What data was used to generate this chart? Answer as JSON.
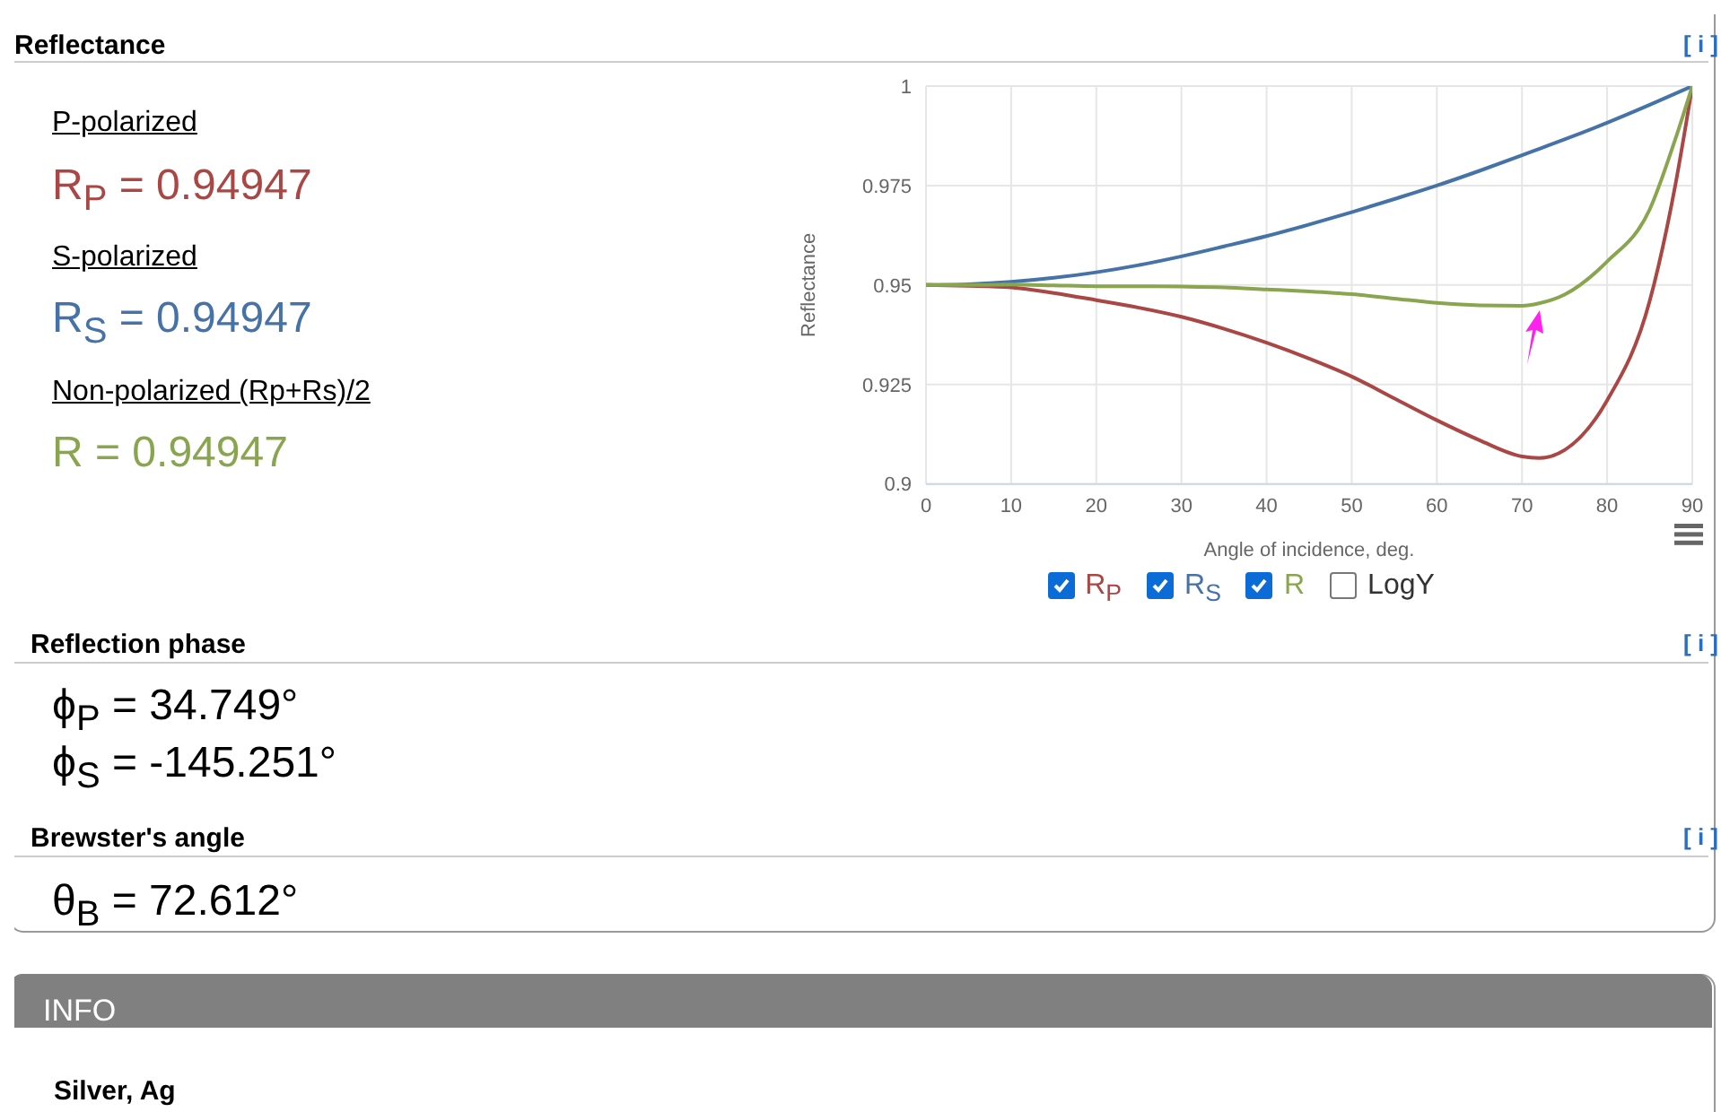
{
  "chart_data": {
    "type": "line",
    "title": "Reflectance",
    "xlabel": "Angle of incidence, deg.",
    "ylabel": "Reflectance",
    "x": [
      0,
      5,
      10,
      15,
      20,
      25,
      30,
      35,
      40,
      45,
      50,
      55,
      60,
      65,
      70,
      72,
      75,
      80,
      85,
      88,
      90
    ],
    "series": [
      {
        "name": "R$_{P}$",
        "color": "#aa4643",
        "values": [
          0.95,
          0.9498,
          0.9494,
          0.948,
          0.9462,
          0.9443,
          0.942,
          0.939,
          0.9355,
          0.9315,
          0.927,
          0.9215,
          0.916,
          0.911,
          0.9069,
          0.9065,
          0.9085,
          0.921,
          0.946,
          0.975,
          1
        ]
      },
      {
        "name": "R$_{S}$",
        "color": "#4572a7",
        "values": [
          0.95,
          0.9502,
          0.9508,
          0.9518,
          0.9532,
          0.955,
          0.9572,
          0.9597,
          0.9623,
          0.9652,
          0.9683,
          0.9716,
          0.975,
          0.9787,
          0.9826,
          0.9842,
          0.9866,
          0.9908,
          0.9953,
          0.9981,
          1
        ]
      },
      {
        "name": "R",
        "color": "#89a54e",
        "values": [
          0.95,
          0.95,
          0.9501,
          0.9499,
          0.9497,
          0.9497,
          0.9496,
          0.9494,
          0.9489,
          0.9484,
          0.9477,
          0.9466,
          0.9455,
          0.9449,
          0.9448,
          0.9454,
          0.9476,
          0.9559,
          0.969,
          0.9866,
          1
        ]
      }
    ],
    "xlim": [
      0,
      90
    ],
    "xticks": [
      0,
      10,
      20,
      30,
      40,
      50,
      60,
      70,
      80,
      90
    ],
    "ylim": [
      0.9,
      1
    ],
    "yticks": [
      0.9,
      0.925,
      0.95,
      0.975,
      1
    ],
    "grid": true,
    "legend": "bottom",
    "marker": "none",
    "line_style": "solid",
    "annotations": [
      "[ i ]",
      "P-polarized",
      "R$_{P}$ = 0.94947",
      "S-polarized",
      "R$_{S}$ = 0.94947",
      "Non-polarized (Rp+Rs)/2",
      "R = 0.94947",
      "Reflection phase",
      "[ i ]",
      "ϕ$_{P}$ = 34.749°",
      "ϕ$_{S}$ = -145.251°",
      "Brewster's angle",
      "[ i ]",
      "θ$_{B}$ = 72.612°",
      "INFO",
      "Silver, Ag",
      "LogY"
    ]
  }
}
